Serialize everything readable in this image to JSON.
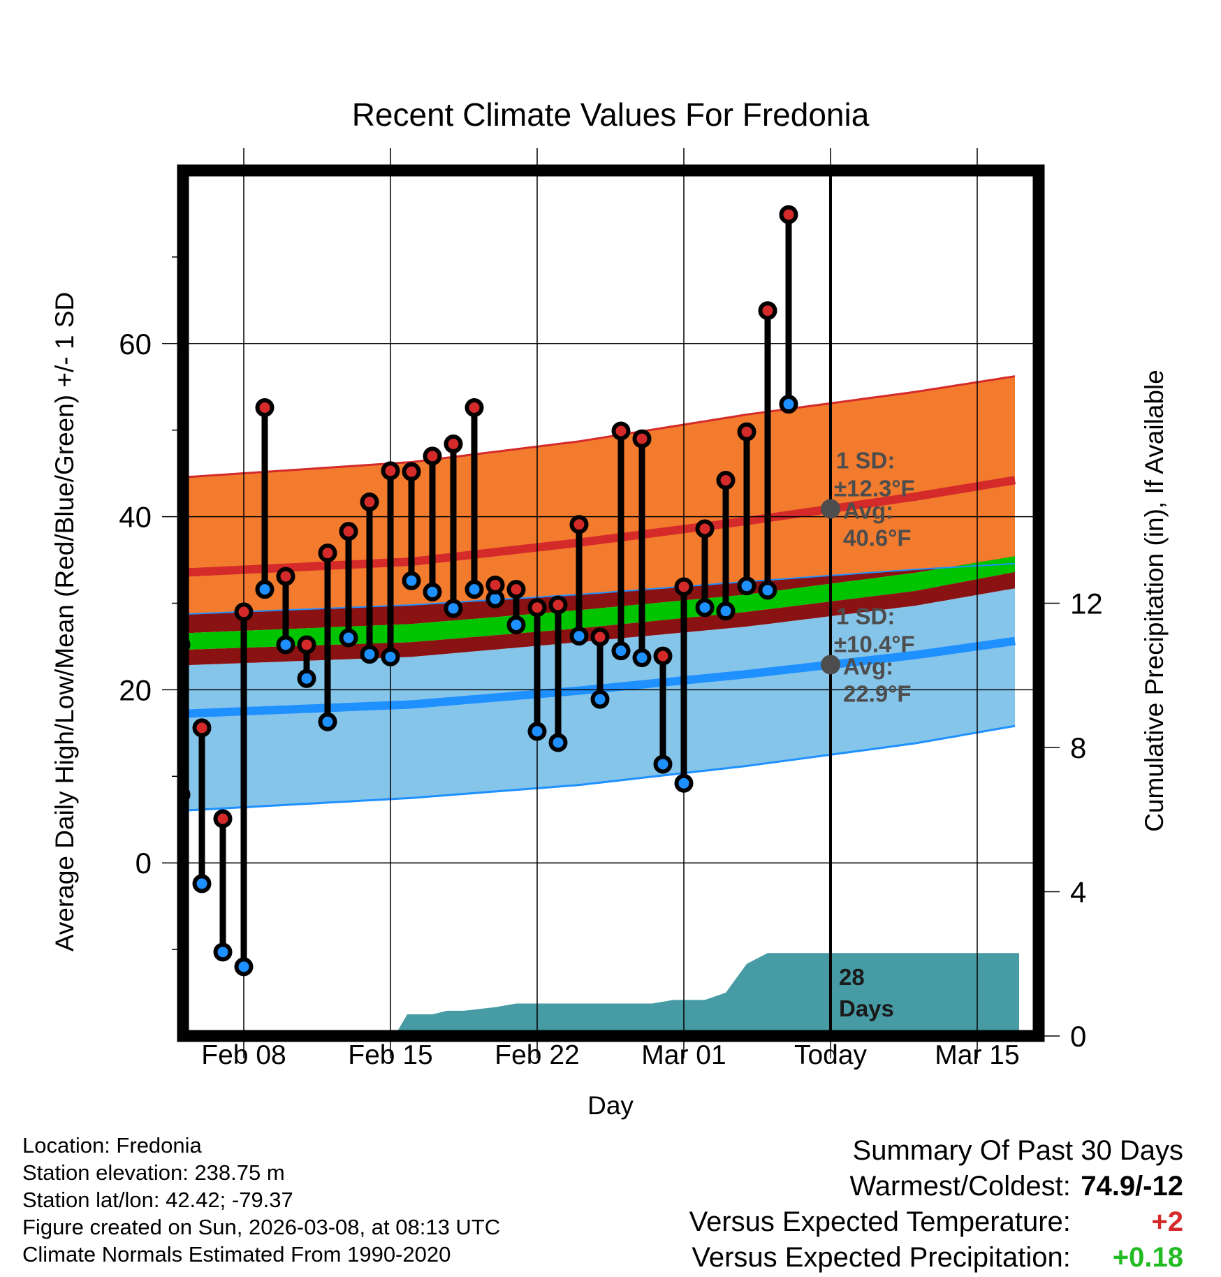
{
  "chart_data": {
    "type": "line",
    "title": "Recent Climate Values For Fredonia",
    "xlabel": "Day",
    "ylabel": "Average Daily High/Low/Mean (Red/Blue/Green) +/- 1 SD",
    "y2label": "Cumulative Precipitation (in), If Available",
    "ylim": [
      -20,
      80
    ],
    "y2lim": [
      0,
      24
    ],
    "yticks": [
      0,
      20,
      40,
      60
    ],
    "y2ticks": [
      0,
      4,
      8,
      12
    ],
    "xticks": [
      {
        "day": 8,
        "label": "Feb 08"
      },
      {
        "day": 15,
        "label": "Feb 15"
      },
      {
        "day": 22,
        "label": "Feb 22"
      },
      {
        "day": 29,
        "label": "Mar 01"
      },
      {
        "day": 36,
        "label": "Today"
      },
      {
        "day": 43,
        "label": "Mar 15"
      }
    ],
    "xlim": [
      4.8,
      45.0
    ],
    "days_label": "28\nDays",
    "normals": {
      "high_upper": [
        [
          4.8,
          44.5
        ],
        [
          16,
          46.3
        ],
        [
          24,
          48.7
        ],
        [
          32,
          51.8
        ],
        [
          40,
          54.4
        ],
        [
          45,
          56.3
        ]
      ],
      "high_mean": [
        [
          4.8,
          33.5
        ],
        [
          16,
          34.8
        ],
        [
          24,
          37.0
        ],
        [
          32,
          39.5
        ],
        [
          40,
          42.3
        ],
        [
          45,
          44.3
        ]
      ],
      "high_lower": [
        [
          4.8,
          28.7
        ],
        [
          16,
          29.8
        ],
        [
          24,
          31.0
        ],
        [
          32,
          32.5
        ],
        [
          40,
          33.9
        ],
        [
          45,
          34.6
        ]
      ],
      "mean_upper": [
        [
          4.8,
          26.5
        ],
        [
          16,
          27.6
        ],
        [
          24,
          29.2
        ],
        [
          32,
          31.0
        ],
        [
          40,
          33.5
        ],
        [
          45,
          35.5
        ]
      ],
      "mean_lower": [
        [
          4.8,
          24.6
        ],
        [
          16,
          25.5
        ],
        [
          24,
          27.1
        ],
        [
          32,
          29.0
        ],
        [
          40,
          31.4
        ],
        [
          45,
          33.7
        ]
      ],
      "low_upper": [
        [
          4.8,
          22.8
        ],
        [
          16,
          23.8
        ],
        [
          24,
          25.5
        ],
        [
          32,
          27.3
        ],
        [
          40,
          29.7
        ],
        [
          45,
          31.8
        ]
      ],
      "low_mean": [
        [
          4.8,
          17.2
        ],
        [
          16,
          18.3
        ],
        [
          24,
          19.9
        ],
        [
          32,
          21.8
        ],
        [
          40,
          24.0
        ],
        [
          45,
          25.7
        ]
      ],
      "low_lower": [
        [
          4.8,
          6.0
        ],
        [
          16,
          7.5
        ],
        [
          24,
          9.0
        ],
        [
          32,
          11.2
        ],
        [
          40,
          13.8
        ],
        [
          45,
          15.9
        ]
      ]
    },
    "series": [
      {
        "name": "Daily High",
        "color": "#d42a2a",
        "x": [
          5,
          6,
          7,
          8,
          9,
          10,
          11,
          12,
          13,
          14,
          15,
          16,
          17,
          18,
          19,
          20,
          21,
          22,
          23,
          24,
          25,
          26,
          27,
          28,
          29,
          30,
          31,
          32,
          33,
          34,
          35
        ],
        "values": [
          25.2,
          15.6,
          5.1,
          29.0,
          52.6,
          33.1,
          25.2,
          35.8,
          38.3,
          41.7,
          45.3,
          45.2,
          47.0,
          48.4,
          52.6,
          32.1,
          31.6,
          29.5,
          29.8,
          39.1,
          26.1,
          49.9,
          49.0,
          23.9,
          31.9,
          38.6,
          44.2,
          49.8,
          63.8,
          74.9,
          null
        ]
      },
      {
        "name": "Daily Low",
        "color": "#1e90ff",
        "x": [
          5,
          6,
          7,
          8,
          9,
          10,
          11,
          12,
          13,
          14,
          15,
          16,
          17,
          18,
          19,
          20,
          21,
          22,
          23,
          24,
          25,
          26,
          27,
          28,
          29,
          30,
          31,
          32,
          33,
          34,
          35
        ],
        "values": [
          7.9,
          -2.4,
          -10.3,
          -12.0,
          31.6,
          25.2,
          21.3,
          16.3,
          26.0,
          24.1,
          23.8,
          32.6,
          31.3,
          29.4,
          31.6,
          30.5,
          27.5,
          15.2,
          13.9,
          26.2,
          18.9,
          24.5,
          23.7,
          11.4,
          9.2,
          29.5,
          29.1,
          32.0,
          31.5,
          53.0,
          null
        ]
      }
    ],
    "precip": [
      [
        15.2,
        0.0
      ],
      [
        15.8,
        0.6
      ],
      [
        17,
        0.6
      ],
      [
        17.7,
        0.7
      ],
      [
        18.5,
        0.7
      ],
      [
        20,
        0.8
      ],
      [
        21,
        0.9
      ],
      [
        22,
        0.9
      ],
      [
        26,
        0.9
      ],
      [
        27.5,
        0.9
      ],
      [
        28.5,
        1.0
      ],
      [
        30,
        1.0
      ],
      [
        31,
        1.2
      ],
      [
        32,
        2.0
      ],
      [
        33,
        2.3
      ],
      [
        34,
        2.3
      ],
      [
        45,
        2.3
      ]
    ],
    "annotations": {
      "high_sd": "1 SD:",
      "high_pm": "±12.3°F",
      "high_avg_label": "Avg:",
      "high_avg": "40.6°F",
      "low_sd": "1 SD:",
      "low_pm": "±10.4°F",
      "low_avg_label": "Avg:",
      "low_avg": "22.9°F"
    }
  },
  "footer": {
    "location": "Location: Fredonia",
    "elevation": "Station elevation: 238.75 m",
    "latlon": "Station lat/lon: 42.42; -79.37",
    "created": "Figure created on Sun, 2026-03-08, at 08:13 UTC",
    "normals": "Climate Normals Estimated From 1990-2020"
  },
  "summary": {
    "title": "Summary Of Past 30 Days",
    "warm_cold_label": "Warmest/Coldest:",
    "warm_cold_value": "74.9/-12",
    "temp_label": "Versus Expected Temperature:",
    "temp_value": "+2",
    "temp_color": "#d42a2a",
    "precip_label": "Versus Expected Precipitation:",
    "precip_value": "+0.18",
    "precip_color": "#22bb22"
  },
  "colors": {
    "high_band": "#f37b2e",
    "high_line": "#d42a2a",
    "mean_band": "#00c400",
    "low_dark_band": "#8b1212",
    "low_band": "#86c5ea",
    "low_line": "#1e90ff",
    "precip_fill": "#479ba4",
    "annotation": "#4d4d4d"
  }
}
